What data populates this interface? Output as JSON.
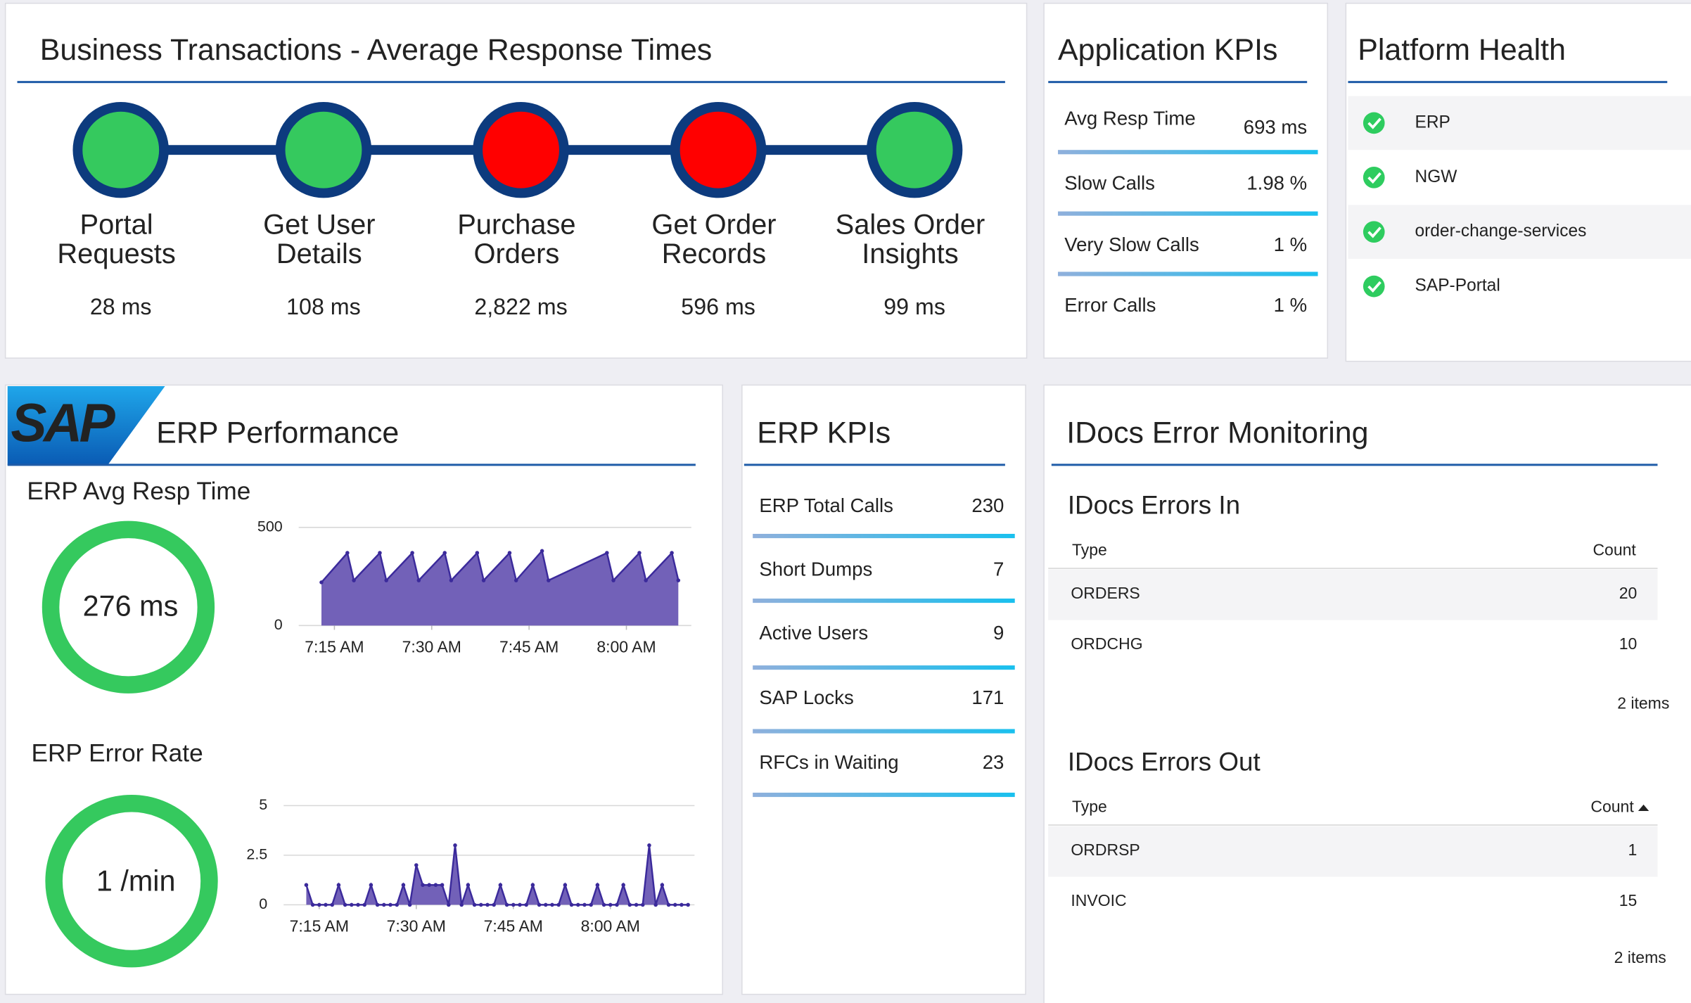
{
  "transactions": {
    "title": "Business Transactions - Average Response Times",
    "nodes": [
      {
        "label": [
          "Portal",
          "Requests"
        ],
        "value": "28 ms",
        "color": "#35c95e"
      },
      {
        "label": [
          "Get User",
          "Details"
        ],
        "value": "108 ms",
        "color": "#35c95e"
      },
      {
        "label": [
          "Purchase",
          "Orders"
        ],
        "value": "2,822 ms",
        "color": "#ff0000"
      },
      {
        "label": [
          "Get Order",
          "Records"
        ],
        "value": "596 ms",
        "color": "#ff0000"
      },
      {
        "label": [
          "Sales Order",
          "Insights"
        ],
        "value": "99 ms",
        "color": "#35c95e"
      }
    ]
  },
  "app_kpis": {
    "title": "Application KPIs",
    "rows": [
      {
        "label": "Avg Resp Time",
        "value": "693 ms"
      },
      {
        "label": "Slow Calls",
        "value": "1.98 %"
      },
      {
        "label": "Very Slow Calls",
        "value": "1 %"
      },
      {
        "label": "Error Calls",
        "value": "1 %"
      }
    ]
  },
  "platform_health": {
    "title": "Platform Health",
    "items": [
      "ERP",
      "NGW",
      "order-change-services",
      "SAP-Portal"
    ]
  },
  "erp_performance": {
    "logo": "SAP",
    "title": "ERP Performance",
    "resp_time": {
      "title": "ERP Avg Resp Time",
      "gauge": "276 ms",
      "chart": {
        "type": "area",
        "color": "#7261b8",
        "line_color": "#3b2a9b",
        "x": [
          433,
          437,
          438,
          442,
          443,
          447,
          448,
          452,
          453,
          457,
          458,
          462,
          463,
          467,
          468,
          477,
          478,
          482,
          483,
          487,
          488
        ],
        "values": [
          220,
          370,
          230,
          370,
          230,
          370,
          230,
          370,
          230,
          370,
          230,
          370,
          230,
          380,
          230,
          370,
          230,
          370,
          230,
          370,
          230
        ],
        "xlim": [
          430,
          490
        ],
        "ylim": [
          0,
          500
        ],
        "yticks": [
          0,
          500
        ],
        "xticks": [
          {
            "value": 435,
            "label": "7:15 AM"
          },
          {
            "value": 450,
            "label": "7:30 AM"
          },
          {
            "value": 465,
            "label": "7:45 AM"
          },
          {
            "value": 480,
            "label": "8:00 AM"
          }
        ]
      }
    },
    "error_rate": {
      "title": "ERP Error Rate",
      "gauge": "1 /min",
      "chart": {
        "type": "area",
        "color": "#7261b8",
        "line_color": "#3b2a9b",
        "x": [
          433,
          434,
          435,
          436,
          437,
          438,
          439,
          440,
          441,
          442,
          443,
          444,
          445,
          446,
          447,
          448,
          449,
          450,
          451,
          452,
          453,
          454,
          455,
          456,
          457,
          458,
          459,
          460,
          461,
          462,
          463,
          464,
          465,
          466,
          467,
          468,
          469,
          470,
          471,
          472,
          473,
          474,
          475,
          476,
          477,
          478,
          479,
          480,
          481,
          482,
          483,
          484,
          485,
          486,
          487,
          488,
          489,
          490,
          491,
          492
        ],
        "values": [
          1,
          0,
          0,
          0,
          0,
          1,
          0,
          0,
          0,
          0,
          1,
          0,
          0,
          0,
          0,
          1,
          0,
          2,
          1,
          1,
          1,
          1,
          0,
          3,
          0,
          1,
          0,
          0,
          0,
          0,
          1,
          0,
          0,
          0,
          0,
          1,
          0,
          0,
          0,
          0,
          1,
          0,
          0,
          0,
          0,
          1,
          0,
          0,
          0,
          1,
          0,
          0,
          0,
          3,
          0,
          1,
          0,
          0,
          0,
          0
        ],
        "xlim": [
          430,
          493
        ],
        "ylim": [
          0,
          5
        ],
        "yticks": [
          0,
          2.5,
          5
        ],
        "xticks": [
          {
            "value": 435,
            "label": "7:15 AM"
          },
          {
            "value": 450,
            "label": "7:30 AM"
          },
          {
            "value": 465,
            "label": "7:45 AM"
          },
          {
            "value": 480,
            "label": "8:00 AM"
          }
        ]
      }
    }
  },
  "erp_kpis": {
    "title": "ERP KPIs",
    "rows": [
      {
        "label": "ERP Total Calls",
        "value": 230
      },
      {
        "label": "Short Dumps",
        "value": 7
      },
      {
        "label": "Active Users",
        "value": 9
      },
      {
        "label": "SAP Locks",
        "value": 171
      },
      {
        "label": "RFCs in Waiting",
        "value": 23
      }
    ]
  },
  "idocs": {
    "title": "IDocs Error Monitoring",
    "tables": [
      {
        "title": "IDocs Errors In",
        "columns": [
          "Type",
          "Count"
        ],
        "rows": [
          [
            "ORDERS",
            20
          ],
          [
            "ORDCHG",
            10
          ]
        ],
        "footer": "2 items"
      },
      {
        "title": "IDocs Errors Out",
        "columns": [
          "Type",
          "Count"
        ],
        "rows": [
          [
            "ORDRSP",
            1
          ],
          [
            "INVOIC",
            15
          ]
        ],
        "footer": "2 items"
      }
    ]
  }
}
